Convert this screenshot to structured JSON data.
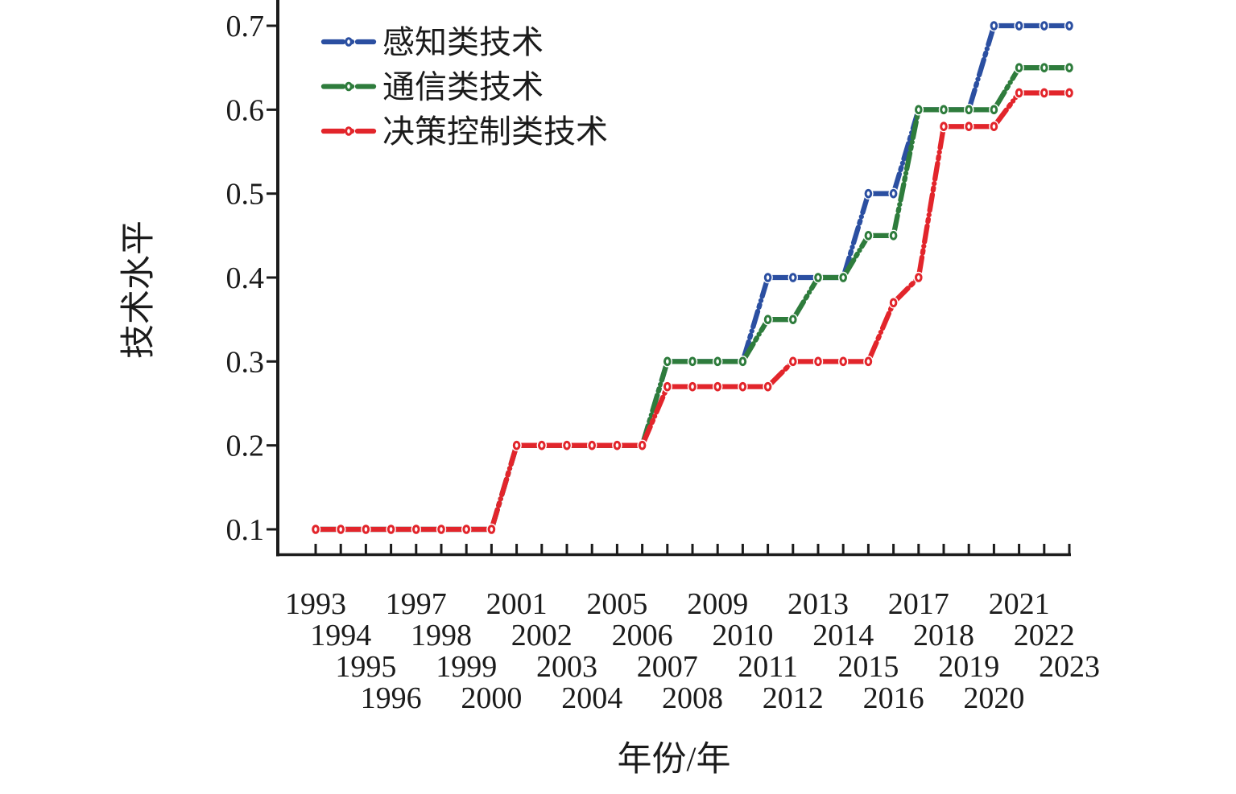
{
  "chart_data": {
    "type": "line",
    "title": "",
    "xlabel": "年份/年",
    "ylabel": "技术水平",
    "grid": false,
    "legend_position": "upper-left",
    "ylim": [
      0.066,
      0.73
    ],
    "y_ticks": [
      "0.1",
      "0.2",
      "0.3",
      "0.4",
      "0.5",
      "0.6",
      "0.7"
    ],
    "x": [
      1993,
      1994,
      1995,
      1996,
      1997,
      1998,
      1999,
      2000,
      2001,
      2002,
      2003,
      2004,
      2005,
      2006,
      2007,
      2008,
      2009,
      2010,
      2011,
      2012,
      2013,
      2014,
      2015,
      2016,
      2017,
      2018,
      2019,
      2020,
      2021,
      2022,
      2023
    ],
    "series": [
      {
        "name": "感知类技术",
        "color": "#2B4FA1",
        "values": [
          0.1,
          0.1,
          0.1,
          0.1,
          0.1,
          0.1,
          0.1,
          0.1,
          0.2,
          0.2,
          0.2,
          0.2,
          0.2,
          0.2,
          0.3,
          0.3,
          0.3,
          0.3,
          0.4,
          0.4,
          0.4,
          0.4,
          0.5,
          0.5,
          0.6,
          0.6,
          0.6,
          0.7,
          0.7,
          0.7,
          0.7
        ]
      },
      {
        "name": "通信类技术",
        "color": "#2E7C3C",
        "values": [
          0.1,
          0.1,
          0.1,
          0.1,
          0.1,
          0.1,
          0.1,
          0.1,
          0.2,
          0.2,
          0.2,
          0.2,
          0.2,
          0.2,
          0.3,
          0.3,
          0.3,
          0.3,
          0.35,
          0.35,
          0.4,
          0.4,
          0.45,
          0.45,
          0.6,
          0.6,
          0.6,
          0.6,
          0.65,
          0.65,
          0.65
        ]
      },
      {
        "name": "决策控制类技术",
        "color": "#E2252B",
        "values": [
          0.1,
          0.1,
          0.1,
          0.1,
          0.1,
          0.1,
          0.1,
          0.1,
          0.2,
          0.2,
          0.2,
          0.2,
          0.2,
          0.2,
          0.27,
          0.27,
          0.27,
          0.27,
          0.27,
          0.3,
          0.3,
          0.3,
          0.3,
          0.37,
          0.4,
          0.58,
          0.58,
          0.58,
          0.62,
          0.62,
          0.62
        ]
      }
    ]
  }
}
